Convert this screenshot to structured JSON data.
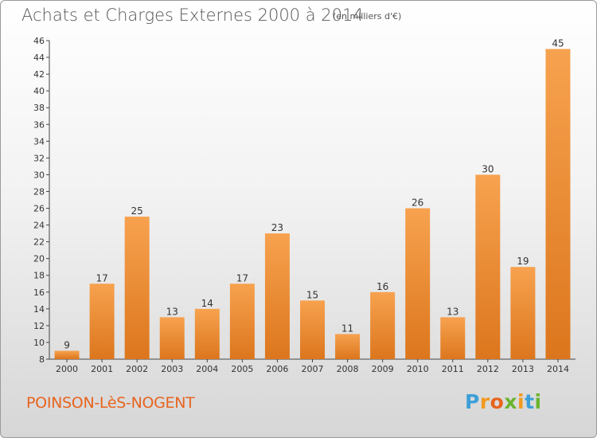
{
  "header": {
    "title": "Achats et Charges Externes 2000 à 2014",
    "subtitle": "(en milliers d'€)"
  },
  "footer": {
    "commune": "POINSON-LèS-NOGENT",
    "logo": "Proxiti"
  },
  "colors": {
    "bar_light": "#f7a24f",
    "bar_dark": "#dc761d",
    "commune_text": "#e8641e"
  },
  "chart_data": {
    "type": "bar",
    "title": "Achats et Charges Externes 2000 à 2014",
    "subtitle": "(en milliers d'€)",
    "categories": [
      "2000",
      "2001",
      "2002",
      "2003",
      "2004",
      "2005",
      "2006",
      "2007",
      "2008",
      "2009",
      "2010",
      "2011",
      "2012",
      "2013",
      "2014"
    ],
    "values": [
      9,
      17,
      25,
      13,
      14,
      17,
      23,
      15,
      11,
      16,
      26,
      13,
      30,
      19,
      45
    ],
    "data_labels": true,
    "ylim": [
      8,
      46
    ],
    "yticks": [
      8,
      10,
      12,
      14,
      16,
      18,
      20,
      22,
      24,
      26,
      28,
      30,
      32,
      34,
      36,
      38,
      40,
      42,
      44,
      46
    ],
    "grid": false,
    "legend": "none"
  }
}
